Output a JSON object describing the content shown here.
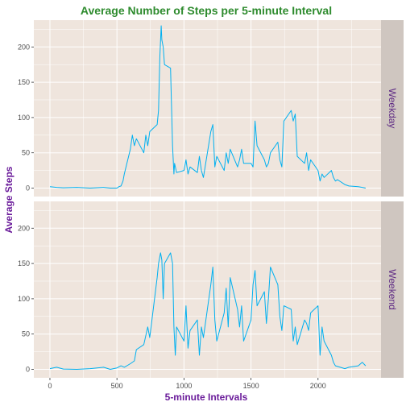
{
  "colors": {
    "line": "#00B0F0",
    "title": "#2E8B2E",
    "axis_title": "#6A1B9A",
    "panel_bg": "#EFE5DD",
    "strip_bg": "#CFC6C0",
    "grid": "#FFFFFF",
    "strip_text": "#5E2A84"
  },
  "chart_data": {
    "type": "line",
    "title": "Average Number of Steps per 5-minute Interval",
    "xlabel": "5-minute Intervals",
    "ylabel": "Average Steps",
    "xlim": [
      0,
      2355
    ],
    "ylim": [
      0,
      230
    ],
    "x_ticks": [
      0,
      500,
      1000,
      1500,
      2000
    ],
    "x_tick_labels": [
      "0",
      "500",
      "1000",
      "1500",
      "2000"
    ],
    "y_ticks": [
      0,
      50,
      100,
      150,
      200
    ],
    "y_tick_labels": [
      "0",
      "50",
      "100",
      "150",
      "200"
    ],
    "grid": true,
    "facets": [
      {
        "name": "Weekday",
        "x": [
          0,
          50,
          100,
          200,
          300,
          400,
          450,
          500,
          515,
          530,
          545,
          555,
          600,
          615,
          630,
          645,
          700,
          715,
          730,
          745,
          800,
          810,
          820,
          830,
          835,
          845,
          855,
          900,
          915,
          925,
          930,
          945,
          1000,
          1015,
          1030,
          1045,
          1100,
          1115,
          1130,
          1145,
          1200,
          1215,
          1230,
          1245,
          1300,
          1315,
          1330,
          1345,
          1400,
          1415,
          1430,
          1445,
          1500,
          1515,
          1530,
          1545,
          1600,
          1615,
          1630,
          1645,
          1700,
          1715,
          1730,
          1745,
          1800,
          1815,
          1830,
          1845,
          1900,
          1915,
          1930,
          1945,
          2000,
          2015,
          2030,
          2045,
          2100,
          2115,
          2130,
          2145,
          2200,
          2215,
          2230,
          2300,
          2330,
          2355
        ],
        "y": [
          2,
          1,
          0.5,
          1,
          0,
          1,
          0,
          0,
          2,
          3,
          10,
          20,
          55,
          75,
          60,
          70,
          50,
          75,
          60,
          80,
          90,
          110,
          185,
          230,
          210,
          200,
          175,
          170,
          60,
          20,
          35,
          22,
          25,
          40,
          20,
          30,
          22,
          45,
          25,
          15,
          80,
          90,
          30,
          45,
          25,
          50,
          35,
          55,
          30,
          40,
          55,
          35,
          35,
          30,
          95,
          60,
          40,
          30,
          35,
          50,
          65,
          40,
          30,
          95,
          110,
          95,
          105,
          45,
          35,
          50,
          25,
          40,
          25,
          10,
          20,
          15,
          25,
          15,
          10,
          12,
          5,
          4,
          3,
          2,
          1,
          0
        ]
      },
      {
        "name": "Weekend",
        "x": [
          0,
          50,
          100,
          200,
          300,
          400,
          450,
          500,
          530,
          555,
          600,
          630,
          645,
          700,
          730,
          745,
          800,
          810,
          825,
          835,
          845,
          855,
          900,
          915,
          925,
          935,
          945,
          1000,
          1015,
          1030,
          1045,
          1100,
          1115,
          1130,
          1145,
          1200,
          1215,
          1230,
          1245,
          1300,
          1315,
          1330,
          1345,
          1400,
          1415,
          1430,
          1445,
          1500,
          1515,
          1530,
          1545,
          1600,
          1615,
          1630,
          1645,
          1700,
          1715,
          1730,
          1745,
          1800,
          1815,
          1830,
          1845,
          1900,
          1915,
          1930,
          1945,
          2000,
          2015,
          2030,
          2045,
          2100,
          2115,
          2130,
          2200,
          2230,
          2300,
          2330,
          2355
        ],
        "y": [
          1,
          3,
          0.5,
          0,
          1,
          3,
          0,
          2,
          5,
          3,
          8,
          12,
          28,
          35,
          60,
          45,
          130,
          150,
          165,
          155,
          100,
          150,
          165,
          150,
          60,
          20,
          60,
          40,
          90,
          30,
          55,
          70,
          20,
          60,
          45,
          120,
          145,
          70,
          40,
          80,
          115,
          60,
          130,
          85,
          60,
          90,
          40,
          70,
          120,
          140,
          90,
          110,
          65,
          100,
          145,
          120,
          75,
          55,
          90,
          85,
          40,
          60,
          35,
          70,
          65,
          55,
          80,
          90,
          20,
          60,
          40,
          20,
          10,
          5,
          1,
          3,
          5,
          10,
          5
        ]
      }
    ]
  }
}
